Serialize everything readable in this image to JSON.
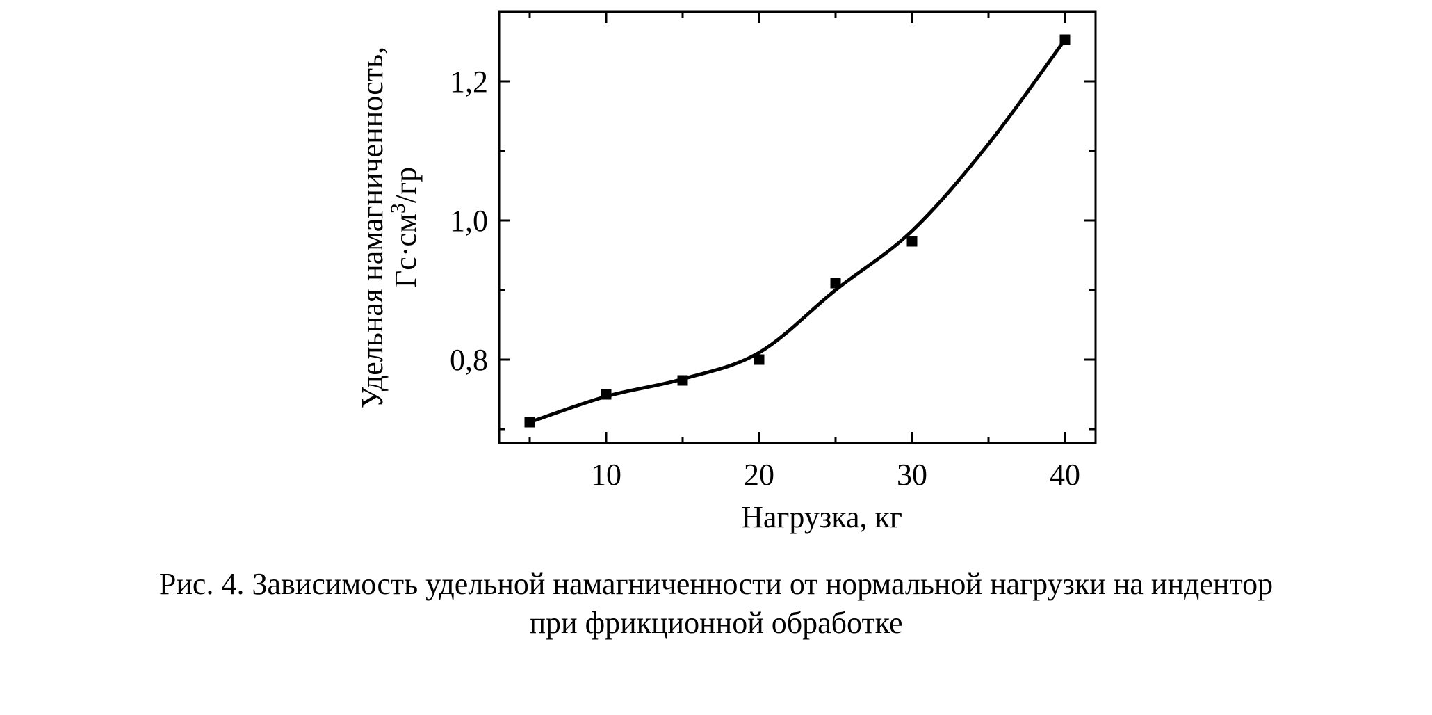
{
  "chart_data": {
    "type": "scatter",
    "xlabel": "Нагрузка, кг",
    "ylabel_line1": "Удельная намагниченность,",
    "ylabel_line2_prefix": "Гс·см",
    "ylabel_line2_sup": "3",
    "ylabel_line2_suffix": "/гр",
    "xlim": [
      3,
      42
    ],
    "ylim": [
      0.68,
      1.3
    ],
    "x_ticks": [
      10,
      20,
      30,
      40
    ],
    "x_tick_labels": [
      "10",
      "20",
      "30",
      "40"
    ],
    "y_ticks": [
      0.8,
      1.0,
      1.2
    ],
    "y_tick_labels": [
      "0,8",
      "1,0",
      "1,2"
    ],
    "grid": false,
    "series": [
      {
        "points": [
          {
            "x": 5,
            "y": 0.71
          },
          {
            "x": 10,
            "y": 0.75
          },
          {
            "x": 15,
            "y": 0.77
          },
          {
            "x": 20,
            "y": 0.8
          },
          {
            "x": 25,
            "y": 0.91
          },
          {
            "x": 30,
            "y": 0.97
          },
          {
            "x": 40,
            "y": 1.26
          }
        ]
      }
    ],
    "fit_curve": [
      {
        "x": 5,
        "y": 0.71
      },
      {
        "x": 10,
        "y": 0.747
      },
      {
        "x": 15,
        "y": 0.772
      },
      {
        "x": 20,
        "y": 0.81
      },
      {
        "x": 25,
        "y": 0.9
      },
      {
        "x": 30,
        "y": 0.985
      },
      {
        "x": 35,
        "y": 1.11
      },
      {
        "x": 40,
        "y": 1.26
      }
    ]
  },
  "caption": {
    "line1": "Рис. 4. Зависимость удельной намагниченности от нормальной нагрузки на индентор",
    "line2": "при фрикционной обработке"
  }
}
